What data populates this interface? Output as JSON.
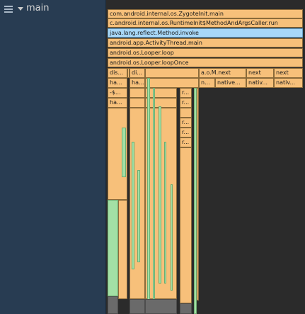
{
  "sidebar": {
    "thread_name": "main",
    "icons": {
      "menu": "hamburger-menu-icon",
      "expand": "chevron-down-icon"
    }
  },
  "colors": {
    "sidebar_bg": "#283c52",
    "chart_bg": "#2b2b2b",
    "app_frame": "#f7c07a",
    "selected_frame": "#a8d8f8",
    "system_frame": "#a3e0a5",
    "idle_frame": "#6a6a6a"
  },
  "flame_chart": {
    "full_width_frames": [
      "com.android.internal.os.ZygoteInit.main",
      "c.android.internal.os.RuntimeInit$MethodAndArgsCaller.run",
      "java.lang.reflect.Method.invoke",
      "android.app.ActivityThread.main",
      "android.os.Looper.loop",
      "android.os.Looper.loopOnce"
    ],
    "selected_frame": "java.lang.reflect.Method.invoke",
    "loop_children": [
      {
        "label": "dis...",
        "column": "a"
      },
      {
        "label": "di...",
        "column": "b"
      },
      {
        "label": "a.o.M.next",
        "column": "c"
      },
      {
        "label": "next",
        "column": "d"
      },
      {
        "label": "next",
        "column": "e"
      }
    ],
    "nested_labels": {
      "col_a": [
        "ha...",
        "-$...",
        "ha..."
      ],
      "col_b": [
        "ha..."
      ],
      "col_c": [
        "n...",
        "native..."
      ],
      "col_d": [
        "nativ..."
      ],
      "col_e": [
        "nativ..."
      ],
      "col_r": [
        "r...",
        "r...",
        "r...",
        "r...",
        "r..."
      ]
    }
  }
}
